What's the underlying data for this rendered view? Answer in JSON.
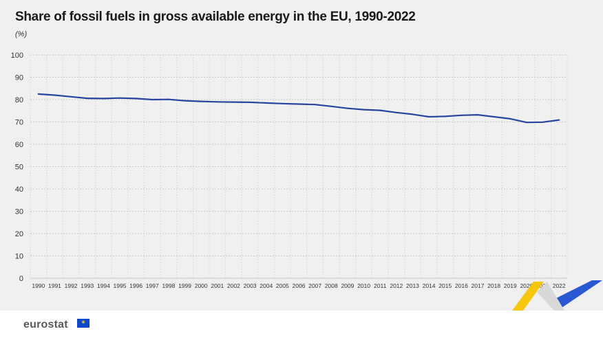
{
  "header": {
    "title": "Share of fossil fuels in gross available energy in the EU, 1990-2022",
    "unit": "(%)"
  },
  "footer": {
    "brand": "eurostat"
  },
  "colors": {
    "line": "#2644a0",
    "grid": "#c8c8c8",
    "background": "#f0f0f0",
    "accent_yellow": "#f5c400",
    "accent_blue": "#1f4fd0"
  },
  "chart_data": {
    "type": "line",
    "title": "Share of fossil fuels in gross available energy in the EU, 1990-2022",
    "ylabel": "(%)",
    "xlabel": "",
    "ylim": [
      0,
      100
    ],
    "yticks": [
      0,
      10,
      20,
      30,
      40,
      50,
      60,
      70,
      80,
      90,
      100
    ],
    "grid": true,
    "categories": [
      "1990",
      "1991",
      "1992",
      "1993",
      "1994",
      "1995",
      "1996",
      "1997",
      "1998",
      "1999",
      "2000",
      "2001",
      "2002",
      "2003",
      "2004",
      "2005",
      "2006",
      "2007",
      "2008",
      "2009",
      "2010",
      "2011",
      "2012",
      "2013",
      "2014",
      "2015",
      "2016",
      "2017",
      "2018",
      "2019",
      "2020",
      "2021",
      "2022"
    ],
    "series": [
      {
        "values": [
          82.5,
          82.0,
          81.3,
          80.6,
          80.5,
          80.7,
          80.5,
          80.0,
          80.1,
          79.5,
          79.2,
          79.0,
          78.9,
          78.8,
          78.5,
          78.2,
          78.0,
          77.8,
          77.0,
          76.1,
          75.5,
          75.2,
          74.2,
          73.4,
          72.3,
          72.5,
          73.0,
          73.2,
          72.3,
          71.4,
          69.8,
          69.9,
          70.9
        ]
      }
    ]
  }
}
